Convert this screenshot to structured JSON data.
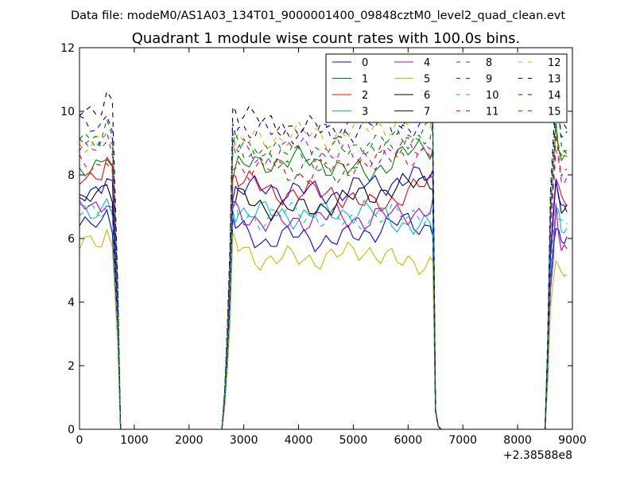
{
  "suptitle": "Data file: modeM0/AS1A03_134T01_9000001400_09848cztM0_level2_quad_clean.evt",
  "chart_data": {
    "type": "line",
    "title": "Quadrant 1 module wise count rates with 100.0s bins.",
    "xlabel": "",
    "ylabel": "",
    "x_offset_label": "+2.38588e8",
    "xlim": [
      0,
      9000
    ],
    "ylim": [
      0,
      12
    ],
    "xticks": [
      0,
      1000,
      2000,
      3000,
      4000,
      5000,
      6000,
      7000,
      8000,
      9000
    ],
    "yticks": [
      0,
      2,
      4,
      6,
      8,
      10,
      12
    ],
    "grid": false,
    "legend": {
      "placement": "top-right",
      "ncol": 4
    },
    "x": [
      0,
      100,
      200,
      300,
      400,
      500,
      600,
      700,
      750,
      800,
      900,
      1000,
      1100,
      1200,
      1300,
      1400,
      1500,
      1600,
      1700,
      1800,
      1900,
      2000,
      2100,
      2200,
      2300,
      2400,
      2500,
      2600,
      2650,
      2700,
      2750,
      2800,
      2850,
      2900,
      3000,
      3100,
      3200,
      3300,
      3400,
      3500,
      3600,
      3700,
      3800,
      3900,
      4000,
      4100,
      4200,
      4300,
      4400,
      4500,
      4600,
      4700,
      4800,
      4900,
      5000,
      5100,
      5200,
      5300,
      5400,
      5500,
      5600,
      5700,
      5800,
      5900,
      6000,
      6100,
      6200,
      6300,
      6400,
      6450,
      6500,
      6550,
      6600,
      6650,
      6700,
      6800,
      6900,
      7000,
      7100,
      7200,
      7300,
      7400,
      7500,
      7600,
      7700,
      7800,
      7900,
      8000,
      8100,
      8200,
      8300,
      8400,
      8500,
      8550,
      8600,
      8650,
      8700,
      8750,
      8800,
      8850,
      8900
    ],
    "series": [
      {
        "name": "0",
        "color": "#0000ff",
        "dash": "solid",
        "levels": [
          6.4,
          5.9,
          6.1,
          5.9,
          6.2,
          6.5,
          6.4
        ],
        "tail": [
          6.4,
          6.0
        ]
      },
      {
        "name": "1",
        "color": "#008000",
        "dash": "solid",
        "levels": [
          8.2,
          8.4,
          8.5,
          8.3,
          8.0,
          8.6,
          8.9
        ],
        "tail": [
          9.4,
          8.6
        ]
      },
      {
        "name": "2",
        "color": "#ff0000",
        "dash": "solid",
        "levels": [
          8.0,
          7.5,
          7.4,
          7.5,
          7.0,
          7.3,
          7.8
        ],
        "tail": [
          7.9,
          7.2
        ]
      },
      {
        "name": "3",
        "color": "#00bfbf",
        "dash": "solid",
        "levels": [
          6.9,
          6.8,
          6.7,
          6.8,
          6.9,
          6.5,
          6.3
        ],
        "tail": [
          6.9,
          6.2
        ]
      },
      {
        "name": "4",
        "color": "#bf00bf",
        "dash": "solid",
        "levels": [
          7.0,
          6.4,
          6.6,
          6.7,
          6.6,
          6.8,
          6.9
        ],
        "tail": [
          7.1,
          5.6
        ]
      },
      {
        "name": "5",
        "color": "#bfbf00",
        "dash": "solid",
        "levels": [
          5.8,
          5.3,
          5.4,
          5.4,
          5.7,
          5.2,
          5.3
        ],
        "tail": [
          5.5,
          4.9
        ]
      },
      {
        "name": "6",
        "color": "#000000",
        "dash": "solid",
        "levels": [
          7.3,
          7.0,
          6.9,
          7.1,
          7.4,
          7.6,
          7.9
        ],
        "tail": [
          7.7,
          7.0
        ]
      },
      {
        "name": "7",
        "color": "#0000ff",
        "dash": "solid",
        "levels": [
          7.5,
          7.6,
          7.5,
          7.4,
          7.7,
          7.8,
          8.0
        ],
        "tail": [
          7.8,
          7.0
        ]
      },
      {
        "name": "8",
        "color": "#008000",
        "dash": "dashed",
        "levels": [
          9.2,
          8.5,
          8.3,
          8.0,
          8.6,
          9.0,
          9.4
        ],
        "tail": [
          10.3,
          8.8
        ]
      },
      {
        "name": "9",
        "color": "#ff0000",
        "dash": "dashed",
        "levels": [
          8.3,
          8.2,
          8.0,
          8.2,
          8.4,
          8.6,
          8.7
        ],
        "tail": [
          9.2,
          8.0
        ]
      },
      {
        "name": "10",
        "color": "#00bfbf",
        "dash": "dashed",
        "levels": [
          6.8,
          6.6,
          6.9,
          6.5,
          6.6,
          6.7,
          6.9
        ],
        "tail": [
          7.3,
          6.5
        ]
      },
      {
        "name": "11",
        "color": "#bf00bf",
        "dash": "dashed",
        "levels": [
          8.8,
          8.6,
          8.9,
          8.7,
          8.5,
          8.8,
          8.9
        ],
        "tail": [
          8.8,
          7.9
        ]
      },
      {
        "name": "12",
        "color": "#bfbf00",
        "dash": "dashed",
        "levels": [
          9.0,
          9.1,
          9.3,
          9.2,
          9.5,
          9.6,
          9.8
        ],
        "tail": [
          9.5,
          8.7
        ]
      },
      {
        "name": "13",
        "color": "#000000",
        "dash": "dashed",
        "levels": [
          10.1,
          9.6,
          9.5,
          9.4,
          10.0,
          9.8,
          10.1
        ],
        "tail": [
          10.8,
          9.6
        ]
      },
      {
        "name": "14",
        "color": "#0000ff",
        "dash": "dashed",
        "levels": [
          9.6,
          9.3,
          9.4,
          9.2,
          9.6,
          9.5,
          9.7
        ],
        "tail": [
          10.2,
          9.2
        ]
      },
      {
        "name": "15",
        "color": "#008000",
        "dash": "dashed",
        "levels": [
          9.0,
          8.6,
          8.8,
          8.7,
          9.0,
          9.1,
          9.3
        ],
        "tail": [
          9.7,
          8.6
        ]
      }
    ]
  }
}
